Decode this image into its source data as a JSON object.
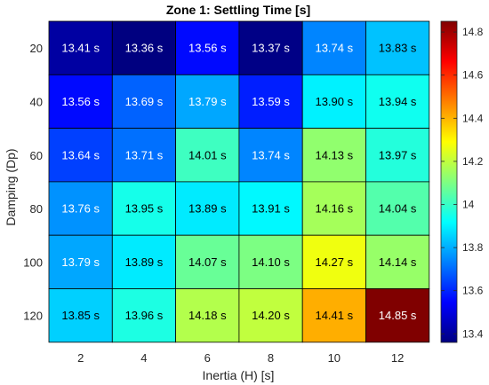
{
  "chart_data": {
    "type": "heatmap",
    "title": "Zone 1: Settling Time [s]",
    "xlabel": "Inertia (H) [s]",
    "ylabel": "Damping (Dp)",
    "x_categories": [
      "2",
      "4",
      "6",
      "8",
      "10",
      "12"
    ],
    "y_categories": [
      "20",
      "40",
      "60",
      "80",
      "100",
      "120"
    ],
    "value_suffix": " s",
    "values": [
      [
        13.41,
        13.36,
        13.56,
        13.37,
        13.74,
        13.83
      ],
      [
        13.56,
        13.69,
        13.79,
        13.59,
        13.9,
        13.94
      ],
      [
        13.64,
        13.71,
        14.01,
        13.74,
        14.13,
        13.97
      ],
      [
        13.76,
        13.95,
        13.89,
        13.91,
        14.16,
        14.04
      ],
      [
        13.79,
        13.89,
        14.07,
        14.1,
        14.27,
        14.14
      ],
      [
        13.85,
        13.96,
        14.18,
        14.2,
        14.41,
        14.85
      ]
    ],
    "colormap": "jet",
    "clim": [
      13.36,
      14.85
    ],
    "colorbar_ticks": [
      "13.4",
      "13.6",
      "13.8",
      "14",
      "14.2",
      "14.4",
      "14.6",
      "14.8"
    ]
  }
}
